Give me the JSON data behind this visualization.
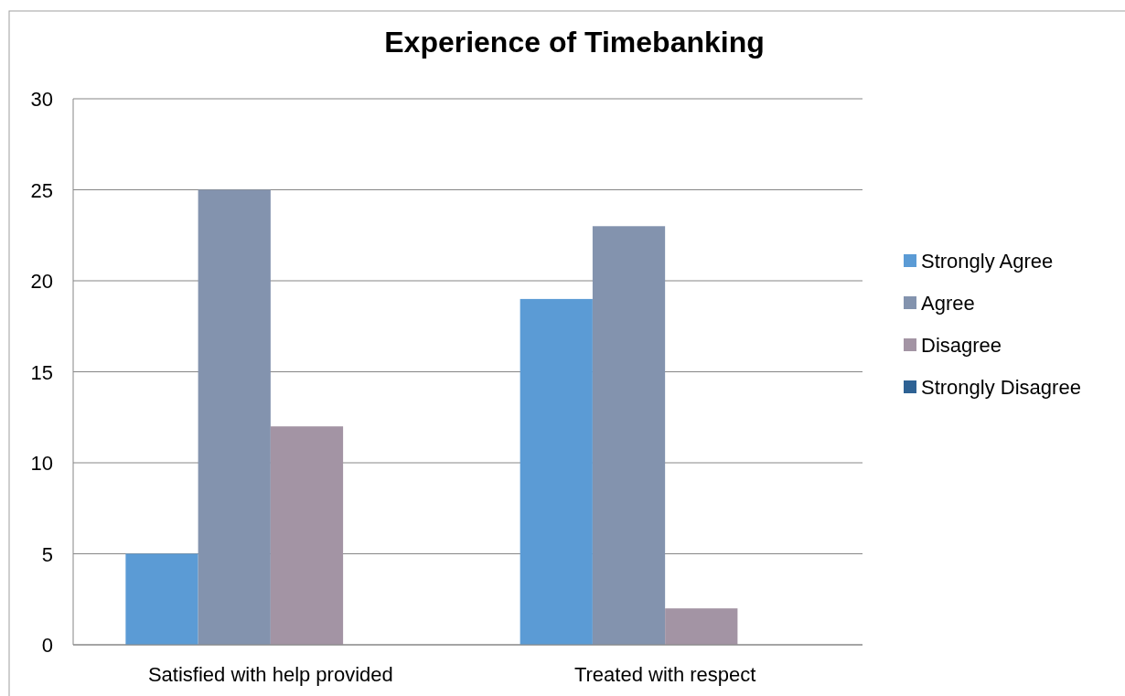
{
  "chart_data": {
    "type": "bar",
    "title": "Experience of Timebanking",
    "categories": [
      "Satisfied with help provided",
      "Treated with respect"
    ],
    "series": [
      {
        "name": "Strongly Agree",
        "color": "#5b9bd5",
        "values": [
          5,
          19
        ]
      },
      {
        "name": "Agree",
        "color": "#8393ae",
        "values": [
          25,
          23
        ]
      },
      {
        "name": "Disagree",
        "color": "#a394a4",
        "values": [
          12,
          2
        ]
      },
      {
        "name": "Strongly Disagree",
        "color": "#2e6294",
        "values": [
          0,
          0
        ]
      }
    ],
    "ylim": [
      0,
      30
    ],
    "yticks": [
      0,
      5,
      10,
      15,
      20,
      25,
      30
    ],
    "grid": "y",
    "legend": "right"
  }
}
